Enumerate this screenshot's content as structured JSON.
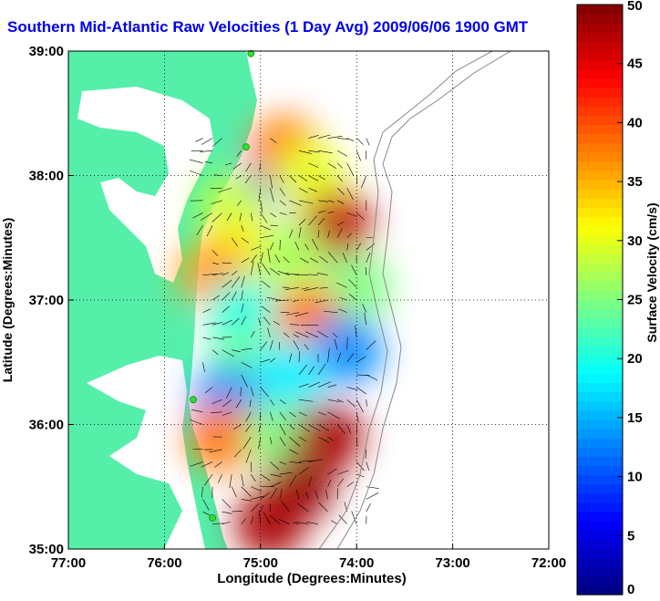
{
  "chart_data": {
    "type": "heatmap",
    "title": "Southern Mid-Atlantic Raw Velocities (1 Day Avg) 2009/06/06 1900 GMT",
    "xlabel": "Longitude (Degrees:Minutes)",
    "ylabel": "Latitude (Degrees:Minutes)",
    "colorbar_label": "Surface Velocity (cm/s)",
    "xlim": [
      -77,
      -72
    ],
    "ylim": [
      35,
      39
    ],
    "clim": [
      0,
      50
    ],
    "x_ticks": [
      {
        "value": -77,
        "label": "77:00"
      },
      {
        "value": -76,
        "label": "76:00"
      },
      {
        "value": -75,
        "label": "75:00"
      },
      {
        "value": -74,
        "label": "74:00"
      },
      {
        "value": -73,
        "label": "73:00"
      },
      {
        "value": -72,
        "label": "72:00"
      }
    ],
    "y_ticks": [
      {
        "value": 35,
        "label": "35:00"
      },
      {
        "value": 36,
        "label": "36:00"
      },
      {
        "value": 37,
        "label": "37:00"
      },
      {
        "value": 38,
        "label": "38:00"
      },
      {
        "value": 39,
        "label": "39:00"
      }
    ],
    "colorbar_ticks": [
      {
        "value": 0,
        "label": "0"
      },
      {
        "value": 5,
        "label": "5"
      },
      {
        "value": 10,
        "label": "10"
      },
      {
        "value": 15,
        "label": "15"
      },
      {
        "value": 20,
        "label": "20"
      },
      {
        "value": 25,
        "label": "25"
      },
      {
        "value": 30,
        "label": "30"
      },
      {
        "value": 35,
        "label": "35"
      },
      {
        "value": 40,
        "label": "40"
      },
      {
        "value": 45,
        "label": "45"
      },
      {
        "value": 50,
        "label": "50"
      }
    ],
    "grid": true,
    "colormap": "jet",
    "colors": {
      "land": "#55efaa",
      "title": "#0000ee",
      "vectors": "#000000",
      "stations": "#33dd33"
    },
    "velocity_regions": [
      {
        "lon": -74.8,
        "lat": 38.05,
        "speed": 10
      },
      {
        "lon": -74.75,
        "lat": 38.2,
        "speed": 38
      },
      {
        "lon": -74.5,
        "lat": 38.0,
        "speed": 30
      },
      {
        "lon": -74.2,
        "lat": 37.6,
        "speed": 47
      },
      {
        "lon": -75.3,
        "lat": 37.75,
        "speed": 28
      },
      {
        "lon": -75.2,
        "lat": 37.4,
        "speed": 32
      },
      {
        "lon": -75.5,
        "lat": 37.2,
        "speed": 36
      },
      {
        "lon": -74.7,
        "lat": 37.35,
        "speed": 27
      },
      {
        "lon": -74.0,
        "lat": 37.1,
        "speed": 25
      },
      {
        "lon": -75.2,
        "lat": 36.9,
        "speed": 20
      },
      {
        "lon": -74.5,
        "lat": 36.85,
        "speed": 38
      },
      {
        "lon": -74.1,
        "lat": 36.6,
        "speed": 13
      },
      {
        "lon": -75.2,
        "lat": 36.5,
        "speed": 24
      },
      {
        "lon": -74.7,
        "lat": 36.4,
        "speed": 18
      },
      {
        "lon": -75.35,
        "lat": 36.2,
        "speed": 13
      },
      {
        "lon": -75.4,
        "lat": 35.9,
        "speed": 38
      },
      {
        "lon": -74.8,
        "lat": 35.9,
        "speed": 25
      },
      {
        "lon": -74.3,
        "lat": 35.9,
        "speed": 48
      },
      {
        "lon": -74.6,
        "lat": 35.5,
        "speed": 49
      },
      {
        "lon": -74.9,
        "lat": 35.2,
        "speed": 48
      }
    ],
    "stations": [
      {
        "lon": -75.1,
        "lat": 38.98
      },
      {
        "lon": -75.15,
        "lat": 38.23
      },
      {
        "lon": -75.7,
        "lat": 36.2
      },
      {
        "lon": -75.5,
        "lat": 35.25
      }
    ]
  }
}
